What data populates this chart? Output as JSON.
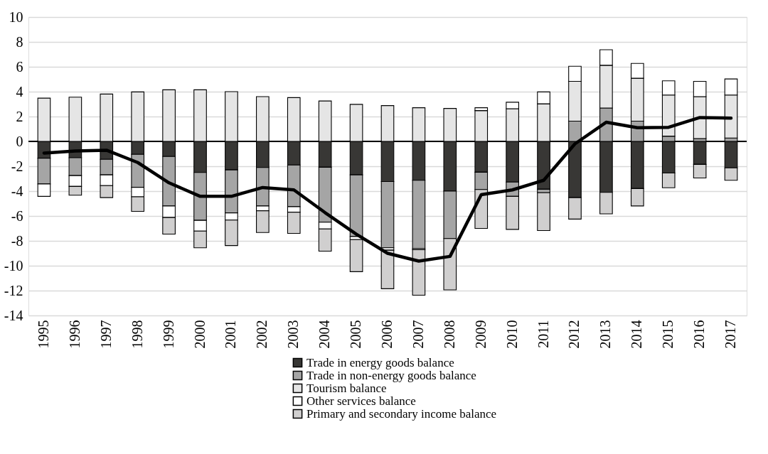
{
  "chart_data": {
    "type": "bar",
    "stacked": true,
    "categories": [
      "1995",
      "1996",
      "1997",
      "1998",
      "1999",
      "2000",
      "2001",
      "2002",
      "2003",
      "2004",
      "2005",
      "2006",
      "2007",
      "2008",
      "2009",
      "2010",
      "2011",
      "2012",
      "2013",
      "2014",
      "2015",
      "2016",
      "2017"
    ],
    "series": [
      {
        "name": "Trade in energy goods balance",
        "color": "#383735",
        "values": [
          -1.35,
          -1.31,
          -1.44,
          -1.04,
          -1.21,
          -2.5,
          -2.29,
          -2.1,
          -1.9,
          -2.08,
          -2.69,
          -3.23,
          -3.13,
          -4.0,
          -2.48,
          -3.27,
          -3.85,
          -4.52,
          -4.1,
          -3.79,
          -2.54,
          -1.85,
          -2.13
        ]
      },
      {
        "name": "Trade in non-energy goods balance",
        "color": "#a5a5a5",
        "values": [
          -2.07,
          -1.44,
          -1.25,
          -2.65,
          -3.98,
          -3.85,
          -3.46,
          -3.09,
          -3.35,
          -4.42,
          -4.96,
          -5.33,
          -5.5,
          -3.81,
          -1.39,
          -1.15,
          -0.28,
          1.63,
          2.69,
          1.63,
          0.42,
          0.23,
          0.27
        ]
      },
      {
        "name": "Tourism balance",
        "color": "#e5e5e5",
        "values": [
          3.48,
          3.56,
          3.81,
          3.98,
          4.15,
          4.15,
          4.0,
          3.6,
          3.52,
          3.25,
          2.98,
          2.88,
          2.71,
          2.65,
          2.48,
          2.63,
          3.02,
          3.2,
          3.43,
          3.45,
          3.31,
          3.37,
          3.46
        ]
      },
      {
        "name": "Other services balance",
        "color": "#ffffff",
        "values": [
          -1.0,
          -0.87,
          -0.87,
          -0.77,
          -0.93,
          -0.86,
          -0.58,
          -0.39,
          -0.44,
          -0.54,
          -0.25,
          -0.19,
          -0.08,
          null,
          0.23,
          0.52,
          0.96,
          1.21,
          1.25,
          1.19,
          1.14,
          1.23,
          1.29
        ]
      },
      {
        "name": "Primary and secondary income balance",
        "color": "#d0cfcf",
        "values": [
          null,
          -0.71,
          -0.96,
          -1.17,
          -1.34,
          -1.35,
          -2.05,
          -1.75,
          -1.71,
          -1.79,
          -2.58,
          -3.1,
          -3.66,
          -4.13,
          -3.13,
          -2.66,
          -3.04,
          -1.73,
          -1.73,
          -1.4,
          -1.19,
          -1.09,
          -1.0
        ]
      },
      {
        "type": "line",
        "color": "#000000",
        "values": [
          -0.94,
          -0.77,
          -0.71,
          -1.7,
          -3.33,
          -4.42,
          -4.42,
          -3.71,
          -3.9,
          -5.73,
          -7.46,
          -9.0,
          -9.63,
          -9.25,
          -4.29,
          -3.9,
          -3.13,
          -0.2,
          1.54,
          1.1,
          1.13,
          1.92,
          1.87
        ]
      }
    ],
    "ylim": [
      -14,
      10
    ],
    "yticks": [
      -14,
      -12,
      -10,
      -8,
      -6,
      -4,
      -2,
      0,
      2,
      4,
      6,
      8,
      10
    ],
    "grid": "y",
    "legend": "bottom",
    "ref_lines": [
      {
        "axis": "y",
        "value": 0,
        "color": "#000000"
      }
    ]
  }
}
